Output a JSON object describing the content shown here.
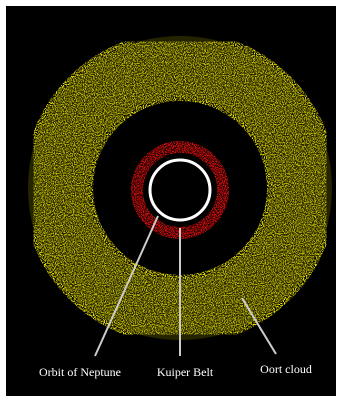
{
  "labels": {
    "neptune": "Orbit of Neptune",
    "kuiper": "Kuiper Belt",
    "oort": "Oort cloud"
  }
}
